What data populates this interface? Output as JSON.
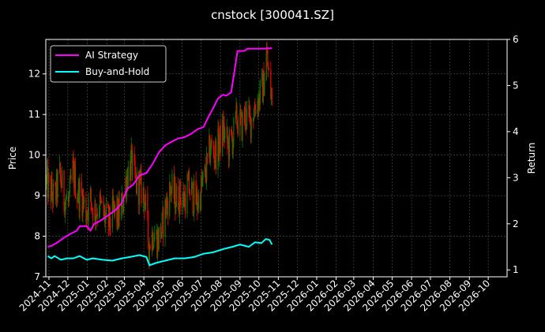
{
  "chart_data": {
    "type": "line",
    "title": "cnstock [300041.SZ]",
    "xlabel": "",
    "ylabel_left": "Price",
    "ylabel_right": "Return",
    "x_ticks": [
      "2024-11",
      "2024-12",
      "2025-01",
      "2025-02",
      "2025-03",
      "2025-04",
      "2025-05",
      "2025-06",
      "2025-07",
      "2025-08",
      "2025-09",
      "2025-10",
      "2025-11",
      "2025-12",
      "2026-01",
      "2026-02",
      "2026-03",
      "2026-04",
      "2026-05",
      "2026-06",
      "2026-07",
      "2026-08",
      "2026-09",
      "2026-10"
    ],
    "ylim_left": [
      7,
      12.85
    ],
    "yticks_left": [
      7,
      8,
      9,
      10,
      11,
      12
    ],
    "ylim_right": [
      0.85,
      6.0
    ],
    "yticks_right": [
      1,
      2,
      3,
      4,
      5,
      6
    ],
    "grid": true,
    "legend_position": "top-left",
    "background": "#000000",
    "candle_up_color": "#008000",
    "candle_down_color": "#ff0000",
    "series": [
      {
        "name": "AI Strategy",
        "axis": "right",
        "color": "#ff00ff",
        "points": [
          [
            "2024-10-30",
            1.5
          ],
          [
            "2024-11-05",
            1.52
          ],
          [
            "2024-11-15",
            1.6
          ],
          [
            "2024-11-25",
            1.7
          ],
          [
            "2024-12-05",
            1.78
          ],
          [
            "2024-12-15",
            1.85
          ],
          [
            "2024-12-20",
            1.95
          ],
          [
            "2024-12-31",
            1.95
          ],
          [
            "2025-01-06",
            1.85
          ],
          [
            "2025-01-12",
            2.0
          ],
          [
            "2025-01-20",
            2.05
          ],
          [
            "2025-02-05",
            2.2
          ],
          [
            "2025-02-15",
            2.3
          ],
          [
            "2025-02-25",
            2.45
          ],
          [
            "2025-03-05",
            2.75
          ],
          [
            "2025-03-15",
            2.85
          ],
          [
            "2025-03-25",
            3.05
          ],
          [
            "2025-04-05",
            3.1
          ],
          [
            "2025-04-15",
            3.3
          ],
          [
            "2025-04-25",
            3.55
          ],
          [
            "2025-05-05",
            3.7
          ],
          [
            "2025-05-15",
            3.78
          ],
          [
            "2025-05-25",
            3.85
          ],
          [
            "2025-06-05",
            3.88
          ],
          [
            "2025-06-15",
            3.95
          ],
          [
            "2025-06-25",
            4.05
          ],
          [
            "2025-07-05",
            4.1
          ],
          [
            "2025-07-12",
            4.3
          ],
          [
            "2025-07-20",
            4.5
          ],
          [
            "2025-07-28",
            4.72
          ],
          [
            "2025-08-05",
            4.8
          ],
          [
            "2025-08-10",
            4.78
          ],
          [
            "2025-08-18",
            4.85
          ],
          [
            "2025-08-28",
            5.75
          ],
          [
            "2025-09-08",
            5.75
          ],
          [
            "2025-09-13",
            5.8
          ],
          [
            "2025-10-10",
            5.8
          ],
          [
            "2025-10-22",
            5.81
          ]
        ]
      },
      {
        "name": "Buy-and-Hold",
        "axis": "right",
        "color": "#00ffff",
        "points": [
          [
            "2024-10-30",
            1.3
          ],
          [
            "2024-11-05",
            1.25
          ],
          [
            "2024-11-10",
            1.3
          ],
          [
            "2024-11-20",
            1.22
          ],
          [
            "2024-11-30",
            1.25
          ],
          [
            "2024-12-10",
            1.25
          ],
          [
            "2024-12-20",
            1.3
          ],
          [
            "2024-12-31",
            1.22
          ],
          [
            "2025-01-10",
            1.25
          ],
          [
            "2025-01-25",
            1.22
          ],
          [
            "2025-02-10",
            1.2
          ],
          [
            "2025-02-25",
            1.25
          ],
          [
            "2025-03-10",
            1.28
          ],
          [
            "2025-03-25",
            1.32
          ],
          [
            "2025-04-05",
            1.28
          ],
          [
            "2025-04-10",
            1.1
          ],
          [
            "2025-04-20",
            1.15
          ],
          [
            "2025-05-05",
            1.2
          ],
          [
            "2025-05-20",
            1.25
          ],
          [
            "2025-06-05",
            1.25
          ],
          [
            "2025-06-20",
            1.28
          ],
          [
            "2025-07-05",
            1.35
          ],
          [
            "2025-07-20",
            1.38
          ],
          [
            "2025-08-05",
            1.45
          ],
          [
            "2025-08-20",
            1.5
          ],
          [
            "2025-09-01",
            1.55
          ],
          [
            "2025-09-15",
            1.5
          ],
          [
            "2025-09-25",
            1.6
          ],
          [
            "2025-10-05",
            1.58
          ],
          [
            "2025-10-12",
            1.67
          ],
          [
            "2025-10-18",
            1.65
          ],
          [
            "2025-10-22",
            1.55
          ]
        ]
      },
      {
        "name": "",
        "type": "candlestick",
        "axis": "left",
        "price_path": [
          [
            "2024-10-28",
            9.3
          ],
          [
            "2024-11-04",
            9.1
          ],
          [
            "2024-11-10",
            8.9
          ],
          [
            "2024-11-18",
            9.5
          ],
          [
            "2024-11-25",
            9.0
          ],
          [
            "2024-12-02",
            8.8
          ],
          [
            "2024-12-09",
            9.6
          ],
          [
            "2024-12-16",
            9.1
          ],
          [
            "2024-12-23",
            9.0
          ],
          [
            "2024-12-30",
            8.6
          ],
          [
            "2025-01-06",
            8.9
          ],
          [
            "2025-01-13",
            8.6
          ],
          [
            "2025-01-20",
            8.8
          ],
          [
            "2025-01-27",
            8.5
          ],
          [
            "2025-02-05",
            8.3
          ],
          [
            "2025-02-12",
            8.6
          ],
          [
            "2025-02-19",
            8.5
          ],
          [
            "2025-02-26",
            8.8
          ],
          [
            "2025-03-05",
            9.5
          ],
          [
            "2025-03-12",
            9.8
          ],
          [
            "2025-03-19",
            9.3
          ],
          [
            "2025-03-26",
            9.2
          ],
          [
            "2025-04-02",
            9.0
          ],
          [
            "2025-04-09",
            7.8
          ],
          [
            "2025-04-16",
            8.1
          ],
          [
            "2025-04-23",
            7.9
          ],
          [
            "2025-04-30",
            8.2
          ],
          [
            "2025-05-07",
            8.8
          ],
          [
            "2025-05-14",
            9.2
          ],
          [
            "2025-05-21",
            8.9
          ],
          [
            "2025-05-28",
            9.0
          ],
          [
            "2025-06-04",
            8.9
          ],
          [
            "2025-06-11",
            9.2
          ],
          [
            "2025-06-18",
            9.0
          ],
          [
            "2025-06-25",
            8.8
          ],
          [
            "2025-07-02",
            9.2
          ],
          [
            "2025-07-09",
            9.6
          ],
          [
            "2025-07-16",
            10.2
          ],
          [
            "2025-07-23",
            10.0
          ],
          [
            "2025-07-30",
            10.3
          ],
          [
            "2025-08-06",
            10.6
          ],
          [
            "2025-08-13",
            10.2
          ],
          [
            "2025-08-20",
            10.4
          ],
          [
            "2025-08-27",
            10.9
          ],
          [
            "2025-09-03",
            10.7
          ],
          [
            "2025-09-10",
            11.0
          ],
          [
            "2025-09-17",
            10.8
          ],
          [
            "2025-09-24",
            11.2
          ],
          [
            "2025-10-01",
            11.4
          ],
          [
            "2025-10-08",
            11.7
          ],
          [
            "2025-10-13",
            12.5
          ],
          [
            "2025-10-17",
            11.9
          ],
          [
            "2025-10-22",
            11.3
          ]
        ]
      }
    ]
  }
}
